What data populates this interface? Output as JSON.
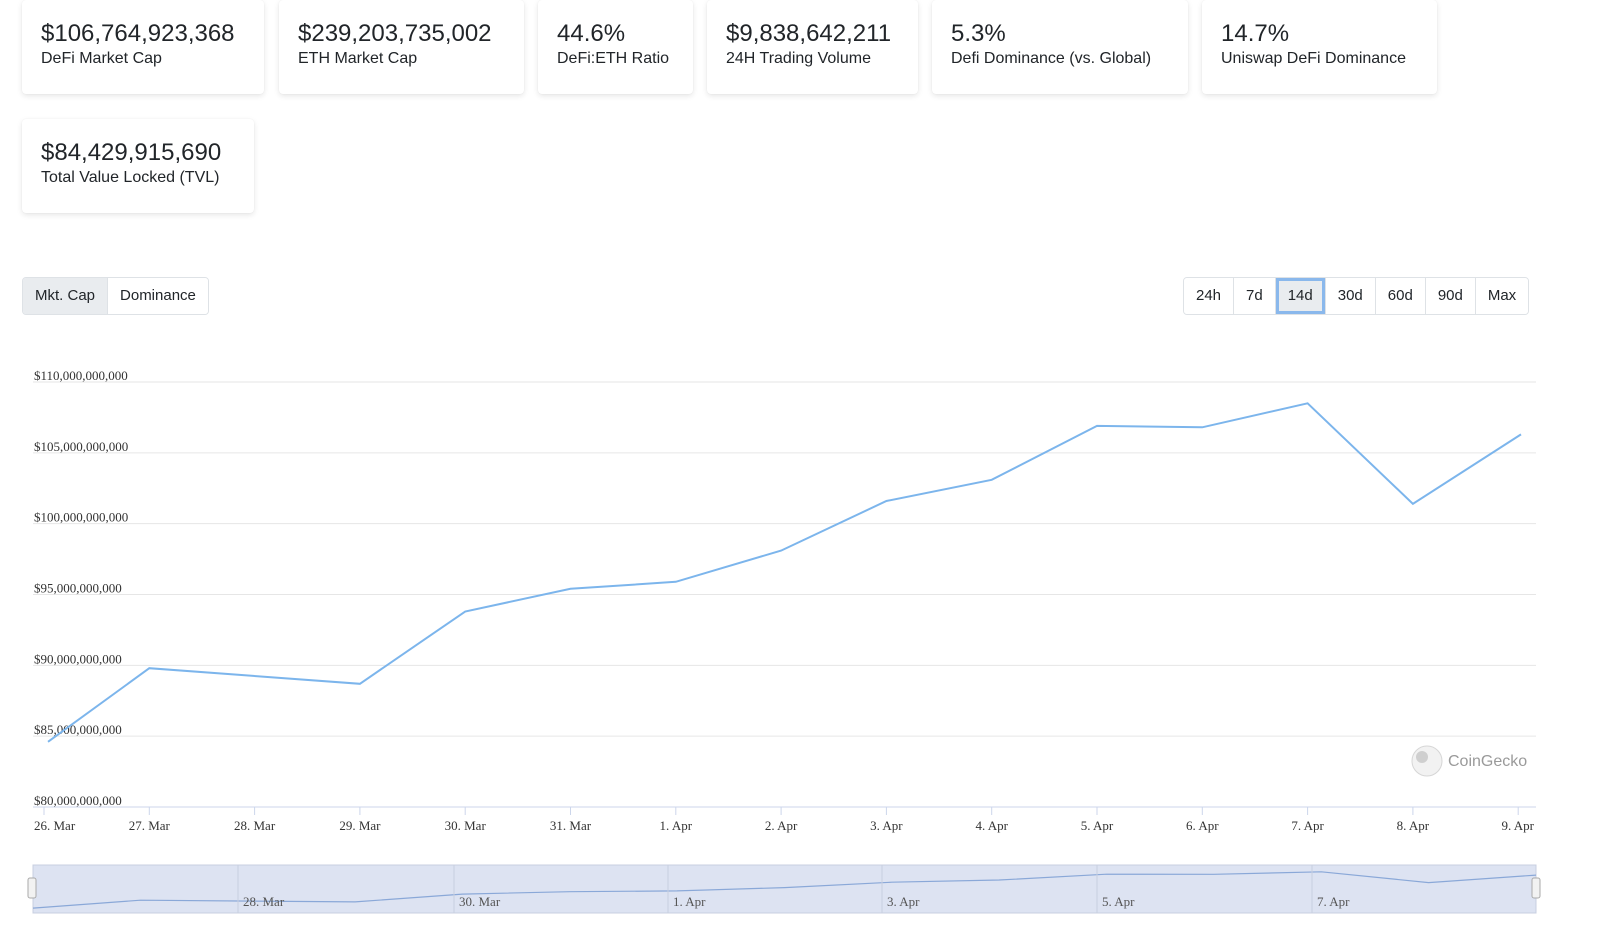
{
  "stats": [
    {
      "value": "$106,764,923,368",
      "label": "DeFi Market Cap"
    },
    {
      "value": "$239,203,735,002",
      "label": "ETH Market Cap"
    },
    {
      "value": "44.6%",
      "label": "DeFi:ETH Ratio"
    },
    {
      "value": "$9,838,642,211",
      "label": "24H Trading Volume"
    },
    {
      "value": "5.3%",
      "label": "Defi Dominance (vs. Global)"
    },
    {
      "value": "14.7%",
      "label": "Uniswap DeFi Dominance"
    },
    {
      "value": "$84,429,915,690",
      "label": "Total Value Locked (TVL)"
    }
  ],
  "view_tabs": {
    "selected": "Mkt. Cap",
    "items": [
      "Mkt. Cap",
      "Dominance"
    ]
  },
  "range_tabs": {
    "selected": "14d",
    "items": [
      "24h",
      "7d",
      "14d",
      "30d",
      "60d",
      "90d",
      "Max"
    ]
  },
  "credit": "CoinGecko",
  "colors": {
    "line": "#7cb5ec",
    "grid": "#e6e6e6",
    "navigator_fill": "#dde3f2",
    "selected_outline": "#8ab8ec"
  },
  "chart_data": {
    "type": "line",
    "y_ticks": [
      "$80,000,000,000",
      "$85,000,000,000",
      "$90,000,000,000",
      "$95,000,000,000",
      "$100,000,000,000",
      "$105,000,000,000",
      "$110,000,000,000"
    ],
    "ylim": [
      80000000000,
      110000000000
    ],
    "x_ticks": [
      "26. Mar",
      "27. Mar",
      "28. Mar",
      "29. Mar",
      "30. Mar",
      "31. Mar",
      "1. Apr",
      "2. Apr",
      "3. Apr",
      "4. Apr",
      "5. Apr",
      "6. Apr",
      "7. Apr",
      "8. Apr",
      "9. Apr"
    ],
    "series": [
      {
        "values": [
          [
            "26. Mar",
            84600000000
          ],
          [
            "27. Mar",
            89800000000
          ],
          [
            "29. Mar",
            88700000000
          ],
          [
            "30. Mar",
            93800000000
          ],
          [
            "31. Mar",
            95400000000
          ],
          [
            "1. Apr",
            95900000000
          ],
          [
            "2. Apr",
            98100000000
          ],
          [
            "3. Apr",
            101600000000
          ],
          [
            "4. Apr",
            103100000000
          ],
          [
            "5. Apr",
            106900000000
          ],
          [
            "6. Apr",
            106800000000
          ],
          [
            "7. Apr",
            108500000000
          ],
          [
            "8. Apr",
            101400000000
          ],
          [
            "9. Apr",
            106300000000
          ]
        ]
      }
    ],
    "navigator_labels": [
      "28. Mar",
      "30. Mar",
      "1. Apr",
      "3. Apr",
      "5. Apr",
      "7. Apr"
    ],
    "grid": true
  }
}
